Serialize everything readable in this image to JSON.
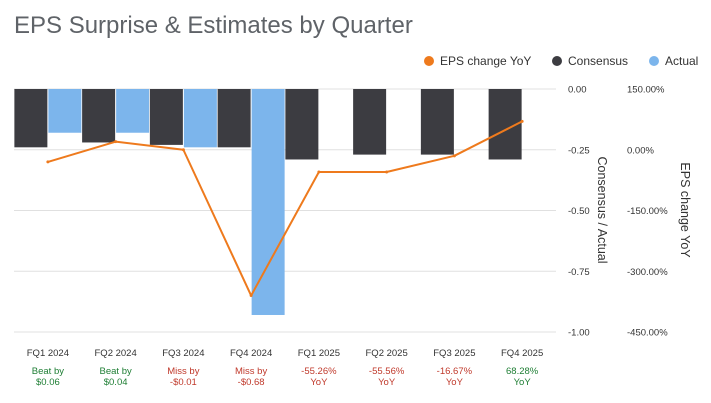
{
  "chart_data": {
    "type": "bar",
    "title": "EPS Surprise & Estimates by Quarter",
    "categories": [
      "FQ1 2024",
      "FQ2 2024",
      "FQ3 2024",
      "FQ4 2024",
      "FQ1 2025",
      "FQ2 2025",
      "FQ3 2025",
      "FQ4 2025"
    ],
    "notes": [
      [
        "Beat by",
        "$0.06"
      ],
      [
        "Beat by",
        "$0.04"
      ],
      [
        "Miss by",
        "-$0.01"
      ],
      [
        "Miss by",
        "-$0.68"
      ],
      [
        "-55.26%",
        "YoY"
      ],
      [
        "-55.56%",
        "YoY"
      ],
      [
        "-16.67%",
        "YoY"
      ],
      [
        "68.28%",
        "YoY"
      ]
    ],
    "note_colors": [
      "#1e7e34",
      "#1e7e34",
      "#c0392b",
      "#c0392b",
      "#c0392b",
      "#c0392b",
      "#c0392b",
      "#1e7e34"
    ],
    "series": [
      {
        "name": "Consensus",
        "axis": "left",
        "color": "#3c3c41",
        "values": [
          -0.24,
          -0.22,
          -0.23,
          -0.24,
          -0.29,
          -0.27,
          -0.27,
          -0.29
        ]
      },
      {
        "name": "Actual",
        "axis": "left",
        "color": "#7cb5ec",
        "values": [
          -0.18,
          -0.18,
          -0.24,
          -0.93,
          null,
          null,
          null,
          null
        ]
      },
      {
        "name": "EPS change YoY",
        "axis": "right",
        "type": "line",
        "color": "#ee7a1d",
        "values": [
          -30,
          20,
          0,
          -360,
          -55,
          -55,
          -15,
          70
        ]
      }
    ],
    "legend_order": [
      "EPS change YoY",
      "Consensus",
      "Actual"
    ],
    "legend_position": "top-right",
    "y_left": {
      "label": "Consensus / Actual",
      "ticks": [
        0,
        -0.25,
        -0.5,
        -0.75,
        -1.0
      ],
      "tick_labels": [
        "0.00",
        "-0.25",
        "-0.50",
        "-0.75",
        "-1.00"
      ],
      "range": [
        0,
        -1.0
      ]
    },
    "y_right": {
      "label": "EPS change YoY",
      "ticks": [
        150,
        0,
        -150,
        -300,
        -450
      ],
      "tick_labels": [
        "150.00%",
        "0.00%",
        "-150.00%",
        "-300.00%",
        "-450.00%"
      ],
      "range": [
        150,
        -450
      ]
    },
    "grid": true
  }
}
